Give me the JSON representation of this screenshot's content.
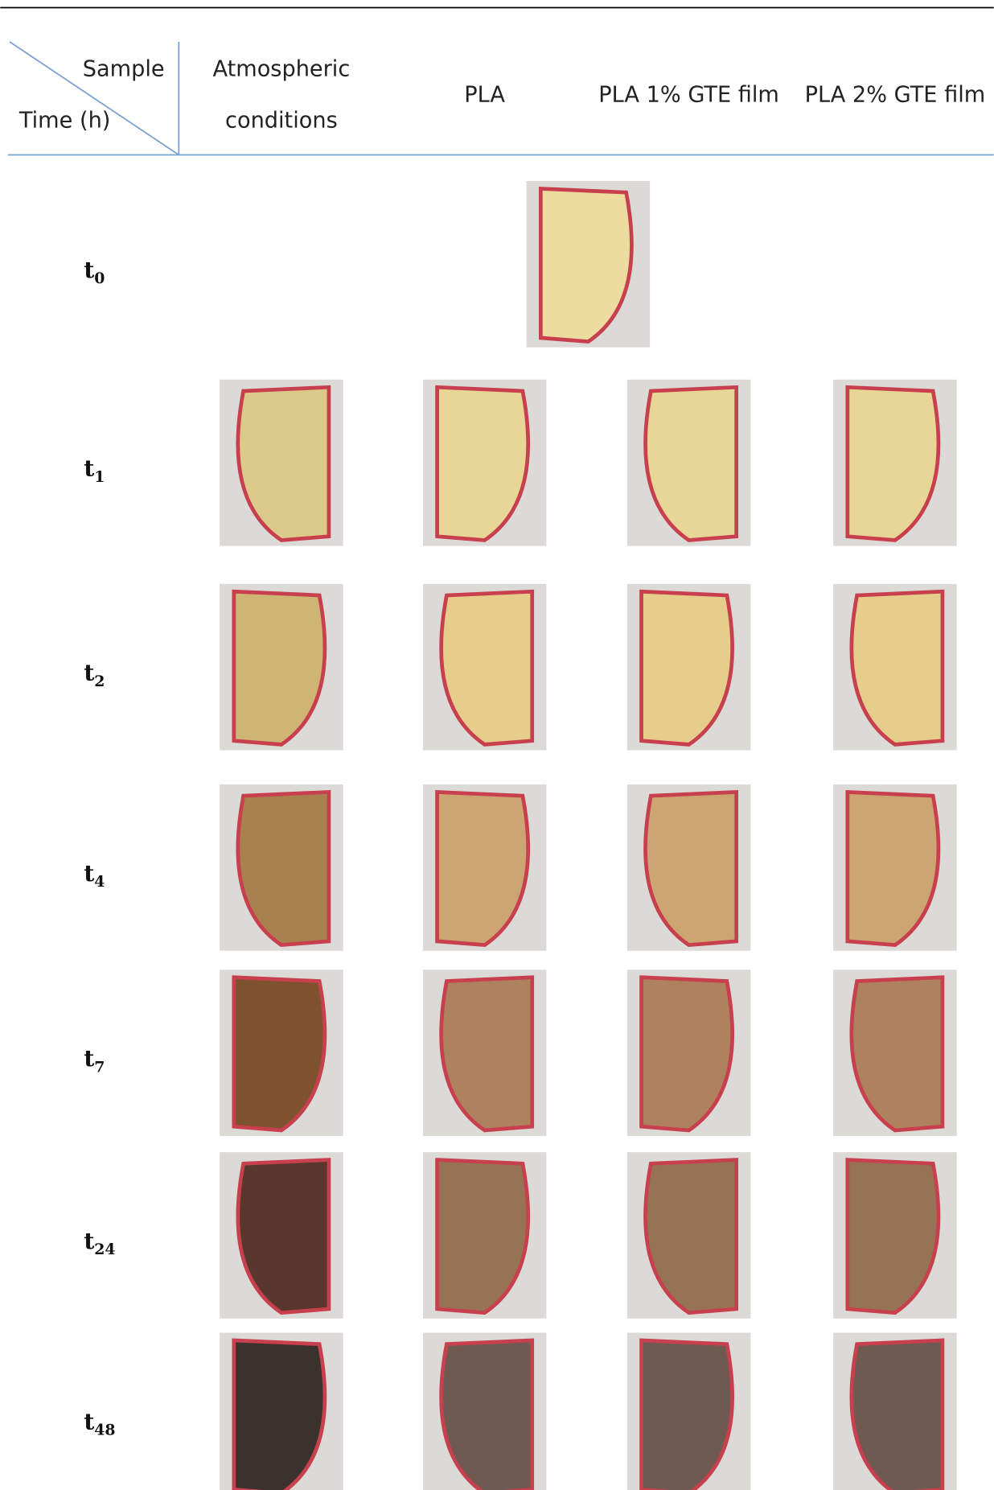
{
  "header": {
    "corner_top": "Sample",
    "corner_bottom": "Time (h)",
    "columns": [
      [
        "Atmospheric",
        "conditions"
      ],
      [
        "PLA"
      ],
      [
        "PLA 1% GTE film"
      ],
      [
        "PLA 2% GTE film"
      ]
    ]
  },
  "rows": [
    {
      "main": "t",
      "sub": "0"
    },
    {
      "main": "t",
      "sub": "1"
    },
    {
      "main": "t",
      "sub": "2"
    },
    {
      "main": "t",
      "sub": "4"
    },
    {
      "main": "t",
      "sub": "7"
    },
    {
      "main": "t",
      "sub": "24"
    },
    {
      "main": "t",
      "sub": "48"
    }
  ]
}
